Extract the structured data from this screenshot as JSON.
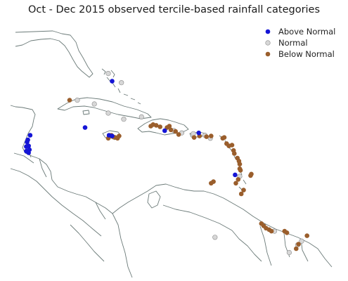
{
  "title": "Oct - Dec 2015 observed tercile-based rainfall categories",
  "colors": {
    "above_normal": "#1515d6",
    "normal": "#d7d7d7",
    "below_normal": "#9a5e2c",
    "land_outline": "#6b7a78",
    "marker_edge": "#8a8a8a"
  },
  "legend": [
    {
      "key": "above_normal",
      "label": "Above Normal"
    },
    {
      "key": "normal",
      "label": "Normal"
    },
    {
      "key": "below_normal",
      "label": "Below Normal"
    }
  ],
  "chart_data": {
    "type": "scatter",
    "coordinate_units": "degrees (lon, lat)",
    "extent": {
      "lon": [
        -90,
        -50
      ],
      "lat": [
        0,
        32
      ]
    },
    "series": [
      {
        "name": "Above Normal",
        "category": "above_normal",
        "points": [
          [
            -77.5,
            25.5
          ],
          [
            -81.0,
            19.4
          ],
          [
            -77.9,
            18.4
          ],
          [
            -77.5,
            18.3
          ],
          [
            -70.7,
            19.0
          ],
          [
            -66.3,
            18.7
          ],
          [
            -61.6,
            13.2
          ],
          [
            -88.1,
            18.4
          ],
          [
            -88.5,
            17.5
          ],
          [
            -88.3,
            17.0
          ],
          [
            -88.6,
            16.9
          ],
          [
            -88.2,
            16.5
          ],
          [
            -88.6,
            16.3
          ],
          [
            -88.3,
            16.1
          ],
          [
            -88.4,
            17.8
          ]
        ]
      },
      {
        "name": "Normal",
        "category": "normal",
        "points": [
          [
            -78.0,
            26.5
          ],
          [
            -76.3,
            25.3
          ],
          [
            -82.0,
            23.0
          ],
          [
            -79.8,
            22.5
          ],
          [
            -78.0,
            21.3
          ],
          [
            -76.0,
            20.5
          ],
          [
            -73.7,
            20.8
          ],
          [
            -69.5,
            19.0
          ],
          [
            -68.5,
            18.7
          ],
          [
            -67.0,
            18.6
          ],
          [
            -65.5,
            18.4
          ],
          [
            -64.8,
            18.0
          ],
          [
            -61.0,
            13.0
          ],
          [
            -56.5,
            5.8
          ],
          [
            -53.0,
            4.5
          ],
          [
            -53.5,
            4.0
          ],
          [
            -54.6,
            3.0
          ],
          [
            -64.2,
            5.0
          ],
          [
            -77.2,
            18.1
          ]
        ]
      },
      {
        "name": "Below Normal",
        "category": "below_normal",
        "points": [
          [
            -83.0,
            23.0
          ],
          [
            -77.6,
            18.4
          ],
          [
            -77.4,
            18.2
          ],
          [
            -77.1,
            18.1
          ],
          [
            -76.8,
            18.0
          ],
          [
            -78.0,
            18.0
          ],
          [
            -76.6,
            18.3
          ],
          [
            -72.5,
            19.6
          ],
          [
            -71.8,
            19.7
          ],
          [
            -71.3,
            19.5
          ],
          [
            -70.4,
            19.4
          ],
          [
            -69.9,
            19.1
          ],
          [
            -70.1,
            19.6
          ],
          [
            -68.9,
            18.5
          ],
          [
            -69.3,
            18.9
          ],
          [
            -66.9,
            18.1
          ],
          [
            -66.2,
            18.3
          ],
          [
            -65.3,
            18.2
          ],
          [
            -64.7,
            18.3
          ],
          [
            -63.0,
            18.1
          ],
          [
            -63.2,
            18.0
          ],
          [
            -62.7,
            17.3
          ],
          [
            -62.0,
            17.1
          ],
          [
            -61.8,
            16.4
          ],
          [
            -61.7,
            16.0
          ],
          [
            -61.3,
            15.4
          ],
          [
            -61.1,
            15.0
          ],
          [
            -61.0,
            14.6
          ],
          [
            -61.0,
            14.0
          ],
          [
            -60.9,
            13.8
          ],
          [
            -61.5,
            12.1
          ],
          [
            -61.2,
            12.6
          ],
          [
            -60.5,
            11.2
          ],
          [
            -59.6,
            13.1
          ],
          [
            -59.5,
            13.3
          ],
          [
            -64.4,
            12.3
          ],
          [
            -64.7,
            12.1
          ],
          [
            -58.2,
            6.8
          ],
          [
            -57.9,
            6.5
          ],
          [
            -57.6,
            6.2
          ],
          [
            -57.2,
            6.0
          ],
          [
            -56.9,
            5.8
          ],
          [
            -55.2,
            5.8
          ],
          [
            -54.9,
            5.6
          ],
          [
            -53.4,
            4.1
          ],
          [
            -53.7,
            3.5
          ],
          [
            -52.3,
            5.2
          ],
          [
            -72.2,
            19.8
          ],
          [
            -62.4,
            17.0
          ],
          [
            -60.8,
            10.7
          ]
        ]
      }
    ],
    "legend_position": "top-right"
  }
}
